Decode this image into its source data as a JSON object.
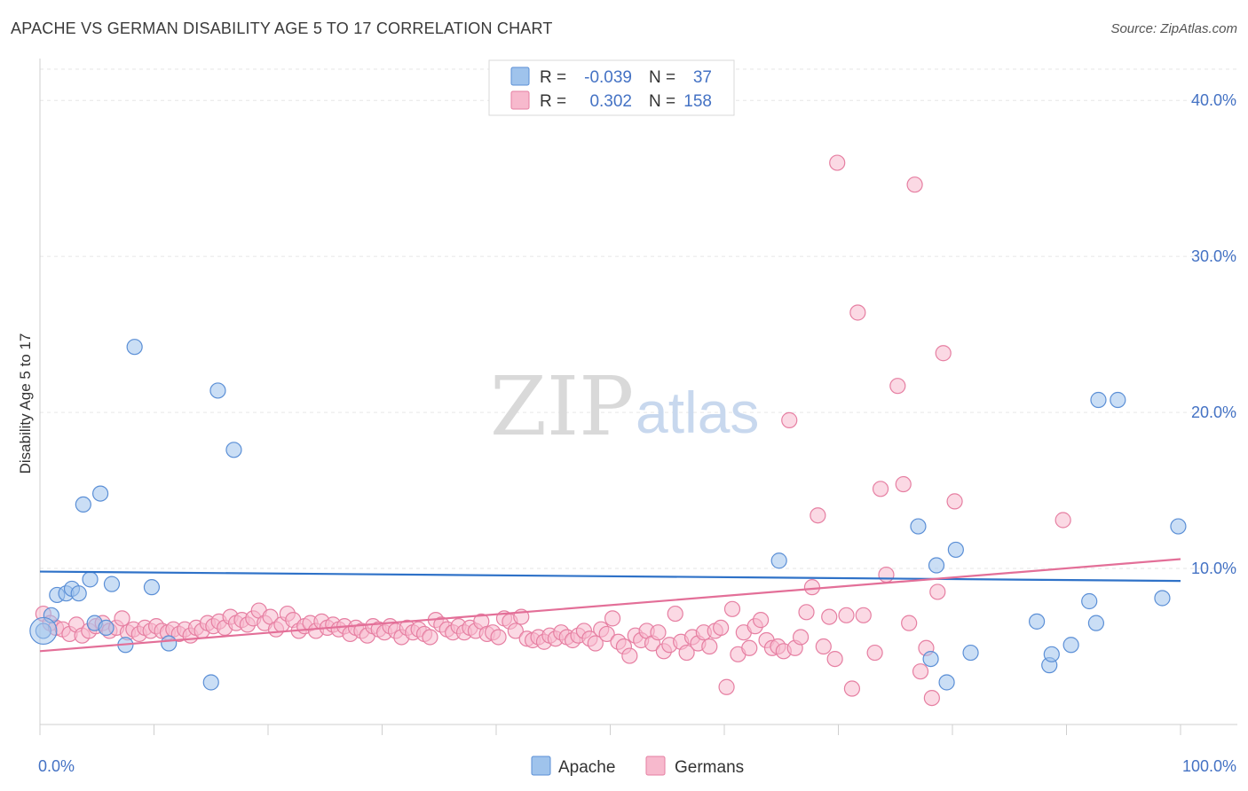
{
  "header": {
    "title": "APACHE VS GERMAN DISABILITY AGE 5 TO 17 CORRELATION CHART",
    "source": "Source: ZipAtlas.com"
  },
  "watermark": {
    "zip": "ZIP",
    "atlas": "atlas"
  },
  "legend": {
    "rows": [
      {
        "r_label": "R =",
        "r_value": "-0.039",
        "n_label": "N =",
        "n_value": "37",
        "color": "#9fc3ec",
        "stroke": "#5b8fd6"
      },
      {
        "r_label": "R =",
        "r_value": "0.302",
        "n_label": "N =",
        "n_value": "158",
        "color": "#f7b9cd",
        "stroke": "#e67fa2"
      }
    ]
  },
  "bottom_legend": {
    "apache": "Apache",
    "germans": "Germans"
  },
  "chart_data": {
    "type": "scatter",
    "title": "APACHE VS GERMAN DISABILITY AGE 5 TO 17 CORRELATION CHART",
    "xlabel": "",
    "ylabel": "Disability Age 5 to 17",
    "xlim": [
      0,
      100
    ],
    "ylim": [
      0,
      42
    ],
    "x_tick_labels": [
      "0.0%",
      "100.0%"
    ],
    "y_ticks": [
      10,
      20,
      30,
      40
    ],
    "y_tick_labels": [
      "10.0%",
      "20.0%",
      "30.0%",
      "40.0%"
    ],
    "grid": true,
    "legend_position": "top-center",
    "colors": {
      "apache": "#5b8fd6",
      "apache_fill": "#9fc3ec",
      "germans": "#e67fa2",
      "germans_fill": "#f7b9cd",
      "apache_line": "#2f72c8",
      "germans_line": "#e36f98"
    },
    "series": [
      {
        "name": "Apache",
        "trend": [
          [
            0,
            9.8
          ],
          [
            100,
            9.2
          ]
        ],
        "points": [
          [
            0.3,
            6.0
          ],
          [
            1.0,
            7.0
          ],
          [
            1.5,
            8.3
          ],
          [
            2.3,
            8.4
          ],
          [
            2.8,
            8.7
          ],
          [
            3.4,
            8.4
          ],
          [
            3.8,
            14.1
          ],
          [
            4.4,
            9.3
          ],
          [
            4.8,
            6.5
          ],
          [
            5.3,
            14.8
          ],
          [
            5.8,
            6.2
          ],
          [
            6.3,
            9.0
          ],
          [
            7.5,
            5.1
          ],
          [
            8.3,
            24.2
          ],
          [
            9.8,
            8.8
          ],
          [
            11.3,
            5.2
          ],
          [
            15.0,
            2.7
          ],
          [
            15.6,
            21.4
          ],
          [
            17.0,
            17.6
          ],
          [
            64.8,
            10.5
          ],
          [
            77.0,
            12.7
          ],
          [
            78.1,
            4.2
          ],
          [
            78.6,
            10.2
          ],
          [
            79.5,
            2.7
          ],
          [
            80.3,
            11.2
          ],
          [
            81.6,
            4.6
          ],
          [
            87.4,
            6.6
          ],
          [
            88.5,
            3.8
          ],
          [
            88.7,
            4.5
          ],
          [
            90.4,
            5.1
          ],
          [
            92.0,
            7.9
          ],
          [
            92.6,
            6.5
          ],
          [
            92.8,
            20.8
          ],
          [
            94.5,
            20.8
          ],
          [
            98.4,
            8.1
          ],
          [
            99.8,
            12.7
          ]
        ]
      },
      {
        "name": "Germans",
        "trend": [
          [
            0,
            4.7
          ],
          [
            100,
            10.6
          ]
        ],
        "points": [
          [
            0.3,
            7.1
          ],
          [
            0.9,
            6.5
          ],
          [
            1.4,
            6.2
          ],
          [
            2.0,
            6.1
          ],
          [
            2.6,
            5.8
          ],
          [
            3.2,
            6.4
          ],
          [
            3.7,
            5.7
          ],
          [
            4.3,
            6.0
          ],
          [
            4.9,
            6.3
          ],
          [
            5.5,
            6.5
          ],
          [
            6.1,
            6.0
          ],
          [
            6.7,
            6.2
          ],
          [
            7.2,
            6.8
          ],
          [
            7.7,
            5.9
          ],
          [
            8.2,
            6.1
          ],
          [
            8.7,
            5.8
          ],
          [
            9.2,
            6.2
          ],
          [
            9.7,
            6.0
          ],
          [
            10.2,
            6.3
          ],
          [
            10.7,
            6.0
          ],
          [
            11.2,
            5.9
          ],
          [
            11.7,
            6.1
          ],
          [
            12.2,
            5.8
          ],
          [
            12.7,
            6.1
          ],
          [
            13.2,
            5.7
          ],
          [
            13.7,
            6.2
          ],
          [
            14.2,
            6.0
          ],
          [
            14.7,
            6.5
          ],
          [
            15.2,
            6.3
          ],
          [
            15.7,
            6.6
          ],
          [
            16.2,
            6.2
          ],
          [
            16.7,
            6.9
          ],
          [
            17.2,
            6.5
          ],
          [
            17.7,
            6.7
          ],
          [
            18.2,
            6.4
          ],
          [
            18.7,
            6.8
          ],
          [
            19.2,
            7.3
          ],
          [
            19.7,
            6.5
          ],
          [
            20.2,
            6.9
          ],
          [
            20.7,
            6.1
          ],
          [
            21.2,
            6.4
          ],
          [
            21.7,
            7.1
          ],
          [
            22.2,
            6.7
          ],
          [
            22.7,
            6.0
          ],
          [
            23.2,
            6.3
          ],
          [
            23.7,
            6.5
          ],
          [
            24.2,
            6.0
          ],
          [
            24.7,
            6.6
          ],
          [
            25.2,
            6.2
          ],
          [
            25.7,
            6.4
          ],
          [
            26.2,
            6.1
          ],
          [
            26.7,
            6.3
          ],
          [
            27.2,
            5.8
          ],
          [
            27.7,
            6.2
          ],
          [
            28.2,
            6.0
          ],
          [
            28.7,
            5.7
          ],
          [
            29.2,
            6.3
          ],
          [
            29.7,
            6.1
          ],
          [
            30.2,
            5.9
          ],
          [
            30.7,
            6.3
          ],
          [
            31.2,
            6.0
          ],
          [
            31.7,
            5.6
          ],
          [
            32.2,
            6.2
          ],
          [
            32.7,
            5.9
          ],
          [
            33.2,
            6.1
          ],
          [
            33.7,
            5.8
          ],
          [
            34.2,
            5.6
          ],
          [
            34.7,
            6.7
          ],
          [
            35.2,
            6.4
          ],
          [
            35.7,
            6.1
          ],
          [
            36.2,
            5.9
          ],
          [
            36.7,
            6.3
          ],
          [
            37.2,
            5.9
          ],
          [
            37.7,
            6.2
          ],
          [
            38.2,
            6.0
          ],
          [
            38.7,
            6.6
          ],
          [
            39.2,
            5.8
          ],
          [
            39.7,
            5.9
          ],
          [
            40.2,
            5.6
          ],
          [
            40.7,
            6.8
          ],
          [
            41.2,
            6.6
          ],
          [
            41.7,
            6.0
          ],
          [
            42.2,
            6.9
          ],
          [
            42.7,
            5.5
          ],
          [
            43.2,
            5.4
          ],
          [
            43.7,
            5.6
          ],
          [
            44.2,
            5.3
          ],
          [
            44.7,
            5.7
          ],
          [
            45.2,
            5.5
          ],
          [
            45.7,
            5.9
          ],
          [
            46.2,
            5.6
          ],
          [
            46.7,
            5.4
          ],
          [
            47.2,
            5.7
          ],
          [
            47.7,
            6.0
          ],
          [
            48.2,
            5.5
          ],
          [
            48.7,
            5.2
          ],
          [
            49.2,
            6.1
          ],
          [
            49.7,
            5.8
          ],
          [
            50.2,
            6.8
          ],
          [
            50.7,
            5.3
          ],
          [
            51.2,
            5.0
          ],
          [
            51.7,
            4.4
          ],
          [
            52.2,
            5.7
          ],
          [
            52.7,
            5.4
          ],
          [
            53.2,
            6.0
          ],
          [
            53.7,
            5.2
          ],
          [
            54.2,
            5.9
          ],
          [
            54.7,
            4.7
          ],
          [
            55.2,
            5.1
          ],
          [
            55.7,
            7.1
          ],
          [
            56.2,
            5.3
          ],
          [
            56.7,
            4.6
          ],
          [
            57.2,
            5.6
          ],
          [
            57.7,
            5.2
          ],
          [
            58.2,
            5.9
          ],
          [
            58.7,
            5.0
          ],
          [
            59.2,
            6.0
          ],
          [
            59.7,
            6.2
          ],
          [
            60.2,
            2.4
          ],
          [
            60.7,
            7.4
          ],
          [
            61.2,
            4.5
          ],
          [
            61.7,
            5.9
          ],
          [
            62.2,
            4.9
          ],
          [
            62.7,
            6.3
          ],
          [
            63.2,
            6.7
          ],
          [
            63.7,
            5.4
          ],
          [
            64.2,
            4.9
          ],
          [
            64.7,
            5.0
          ],
          [
            65.2,
            4.7
          ],
          [
            65.7,
            19.5
          ],
          [
            66.2,
            4.9
          ],
          [
            66.7,
            5.6
          ],
          [
            67.2,
            7.2
          ],
          [
            67.7,
            8.8
          ],
          [
            68.2,
            13.4
          ],
          [
            68.7,
            5.0
          ],
          [
            69.2,
            6.9
          ],
          [
            69.7,
            4.2
          ],
          [
            69.9,
            36.0
          ],
          [
            70.7,
            7.0
          ],
          [
            71.2,
            2.3
          ],
          [
            71.7,
            26.4
          ],
          [
            72.2,
            7.0
          ],
          [
            73.2,
            4.6
          ],
          [
            73.7,
            15.1
          ],
          [
            74.2,
            9.6
          ],
          [
            75.2,
            21.7
          ],
          [
            75.7,
            15.4
          ],
          [
            76.2,
            6.5
          ],
          [
            76.7,
            34.6
          ],
          [
            77.2,
            3.4
          ],
          [
            77.7,
            4.9
          ],
          [
            78.2,
            1.7
          ],
          [
            78.7,
            8.5
          ],
          [
            79.2,
            23.8
          ],
          [
            80.2,
            14.3
          ],
          [
            89.7,
            13.1
          ]
        ]
      }
    ]
  }
}
